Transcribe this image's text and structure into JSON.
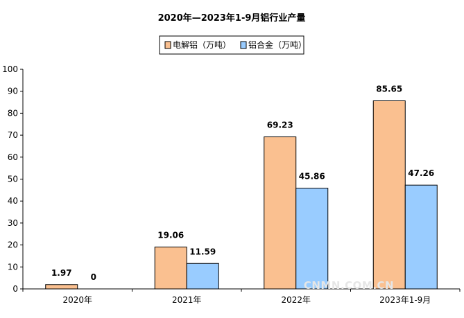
{
  "chart_data": {
    "type": "bar",
    "title": "2020年—2023年1-9月铝行业产量",
    "categories": [
      "2020年",
      "2021年",
      "2022年",
      "2023年1-9月"
    ],
    "series": [
      {
        "name": "电解铝（万吨）",
        "color": "#fac090",
        "values": [
          1.97,
          19.06,
          69.23,
          85.65
        ],
        "labels": [
          "1.97",
          "19.06",
          "69.23",
          "85.65"
        ]
      },
      {
        "name": "铝合金（万吨）",
        "color": "#99ccff",
        "values": [
          0,
          11.59,
          45.86,
          47.26
        ],
        "labels": [
          "0",
          "11.59",
          "45.86",
          "47.26"
        ]
      }
    ],
    "ylim": [
      0,
      100
    ],
    "yticks": [
      0,
      10,
      20,
      30,
      40,
      50,
      60,
      70,
      80,
      90,
      100
    ],
    "xlabel": "",
    "ylabel": "",
    "legend_position": "top-center",
    "grid": false
  },
  "watermark": "CNMN.COM.CN"
}
